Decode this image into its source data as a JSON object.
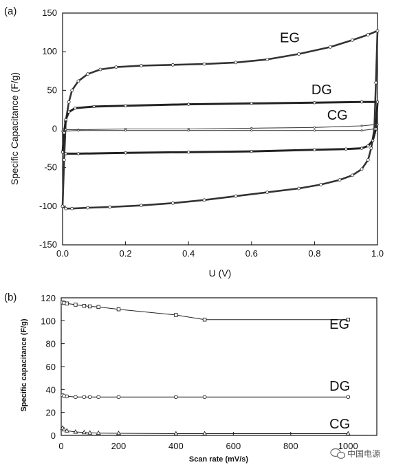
{
  "watermark": {
    "text": "中国电源",
    "icon": "wechat-icon"
  },
  "chart_data": [
    {
      "type": "line",
      "panel_label": "(a)",
      "xlabel": "U (V)",
      "ylabel": "Specific Capacitance (F/g)",
      "xlim": [
        0.0,
        1.0
      ],
      "ylim": [
        -150,
        150
      ],
      "xticks": [
        "0.0",
        "0.2",
        "0.4",
        "0.6",
        "0.8",
        "1.0"
      ],
      "yticks": [
        "150",
        "100",
        "50",
        "0",
        "-50",
        "-100",
        "-150"
      ],
      "grid": false,
      "series": [
        {
          "name": "EG",
          "charge": {
            "x": [
              0.0,
              0.005,
              0.01,
              0.02,
              0.03,
              0.05,
              0.08,
              0.12,
              0.17,
              0.25,
              0.35,
              0.45,
              0.55,
              0.65,
              0.75,
              0.85,
              0.92,
              0.97,
              1.0
            ],
            "y": [
              -100,
              -40,
              10,
              35,
              50,
              62,
              71,
              77,
              80,
              82,
              83,
              84,
              86,
              90,
              97,
              106,
              115,
              122,
              127
            ]
          },
          "discharge": {
            "x": [
              1.0,
              0.995,
              0.99,
              0.98,
              0.97,
              0.95,
              0.92,
              0.88,
              0.82,
              0.75,
              0.65,
              0.55,
              0.45,
              0.35,
              0.25,
              0.15,
              0.08,
              0.03,
              0.01,
              0.0
            ],
            "y": [
              127,
              60,
              0,
              -25,
              -40,
              -52,
              -60,
              -66,
              -72,
              -77,
              -82,
              -87,
              -92,
              -96,
              -99,
              -101,
              -102,
              -103,
              -103,
              -100
            ]
          }
        },
        {
          "name": "DG",
          "charge": {
            "x": [
              0.0,
              0.005,
              0.01,
              0.02,
              0.04,
              0.1,
              0.2,
              0.4,
              0.6,
              0.8,
              0.95,
              1.0
            ],
            "y": [
              -30,
              -5,
              12,
              22,
              27,
              29,
              30,
              32,
              33,
              34,
              35,
              35
            ]
          },
          "discharge": {
            "x": [
              1.0,
              0.995,
              0.985,
              0.97,
              0.95,
              0.9,
              0.8,
              0.6,
              0.4,
              0.2,
              0.05,
              0.01,
              0.0
            ],
            "y": [
              35,
              0,
              -15,
              -22,
              -25,
              -26,
              -27,
              -29,
              -30,
              -31,
              -32,
              -32,
              -30
            ]
          }
        },
        {
          "name": "CG",
          "charge": {
            "x": [
              0.0,
              0.01,
              0.05,
              0.2,
              0.4,
              0.6,
              0.8,
              0.95,
              1.0
            ],
            "y": [
              -3,
              -1,
              -1,
              0,
              0,
              1,
              2,
              4,
              6
            ]
          },
          "discharge": {
            "x": [
              1.0,
              0.99,
              0.95,
              0.8,
              0.6,
              0.4,
              0.2,
              0.05,
              0.0
            ],
            "y": [
              6,
              0,
              -2,
              -2,
              -2,
              -2,
              -2,
              -2,
              -3
            ]
          }
        }
      ],
      "series_labels": [
        {
          "text": "EG",
          "x": 0.69,
          "y": 112
        },
        {
          "text": "DG",
          "x": 0.79,
          "y": 45
        },
        {
          "text": "CG",
          "x": 0.84,
          "y": 12
        }
      ]
    },
    {
      "type": "line",
      "panel_label": "(b)",
      "xlabel": "Scan rate (mV/s)",
      "ylabel": "Specific capacitance (F/g)",
      "xlim": [
        0,
        1100
      ],
      "ylim": [
        0,
        120
      ],
      "xticks": [
        "0",
        "200",
        "400",
        "600",
        "800",
        "1000"
      ],
      "yticks": [
        "120",
        "100",
        "80",
        "60",
        "40",
        "20",
        "0"
      ],
      "grid": false,
      "series": [
        {
          "name": "EG",
          "x": [
            5,
            10,
            20,
            50,
            80,
            100,
            130,
            200,
            400,
            500,
            1000
          ],
          "y": [
            116,
            115.5,
            115,
            114,
            113,
            112.5,
            112,
            110,
            105,
            101,
            101
          ]
        },
        {
          "name": "DG",
          "x": [
            5,
            10,
            20,
            50,
            80,
            100,
            130,
            200,
            400,
            500,
            1000
          ],
          "y": [
            35,
            34.5,
            34,
            33.5,
            33.5,
            33.5,
            33.5,
            33.5,
            33.5,
            33.5,
            33.5
          ]
        },
        {
          "name": "CG",
          "x": [
            5,
            10,
            20,
            50,
            80,
            100,
            130,
            200,
            400,
            500,
            1000
          ],
          "y": [
            6.5,
            5,
            4,
            3,
            2.5,
            2.2,
            2,
            1.8,
            1.5,
            1.5,
            1.5
          ]
        }
      ],
      "series_labels": [
        {
          "text": "EG",
          "x": 935,
          "y": 93
        },
        {
          "text": "DG",
          "x": 935,
          "y": 39
        },
        {
          "text": "CG",
          "x": 935,
          "y": 6
        }
      ]
    }
  ]
}
